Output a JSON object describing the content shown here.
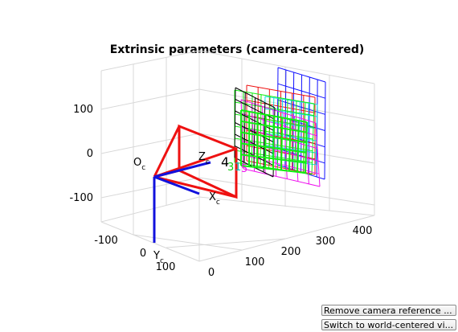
{
  "figure": {
    "title": "Extrinsic parameters (camera-centered)"
  },
  "axes": {
    "z_ticks": [
      "100",
      "0",
      "-100"
    ],
    "x_ticks": [
      "-100",
      "0",
      "100"
    ],
    "depth_ticks": [
      "0",
      "100",
      "200",
      "300",
      "400"
    ],
    "camera_labels": {
      "origin": "O",
      "origin_sub": "c",
      "x": "X",
      "x_sub": "c",
      "y": "Y",
      "y_sub": "c",
      "z": "Z",
      "z_sub": "c"
    },
    "view_indices": [
      "4",
      "3",
      "1",
      "5"
    ],
    "colors": {
      "camera": "#ee1111",
      "axes": "#1111dd",
      "grid": "#d8d8d8"
    }
  },
  "buttons": {
    "remove_camera_reference": "Remove camera reference ...",
    "switch_world_centered": "Switch to world-centered vi..."
  }
}
